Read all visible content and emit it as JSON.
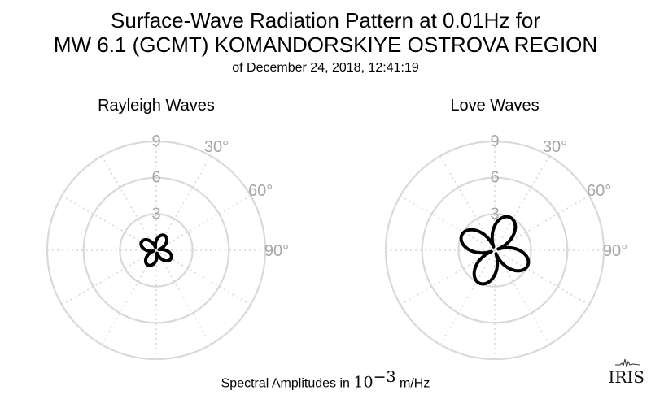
{
  "title_line1": "Surface-Wave Radiation Pattern at 0.01Hz for",
  "title_line2": "MW 6.1 (GCMT) KOMANDORSKIYE OSTROVA REGION",
  "title_line3": "of December 24, 2018, 12:41:19",
  "footer": {
    "prefix": "Spectral Amplitudes in ",
    "base": "10",
    "exponent": "−3",
    "unit": " m/Hz"
  },
  "logo": "IRIS",
  "chart_data": [
    {
      "type": "polar",
      "title": "Rayleigh Waves",
      "r_ticks": [
        "3",
        "6",
        "9"
      ],
      "rmax": 9,
      "angle_ticks": [
        "30°",
        "60°",
        "90°"
      ],
      "grid": true,
      "pattern": {
        "shape": "four-lobe",
        "peak_amplitude": 1.4,
        "lobe_azimuths_deg": [
          30,
          120,
          210,
          300
        ],
        "min_ratio": 0.15
      },
      "colors": {
        "grid": "#d9d9d9",
        "tick_label": "#a6a6a6",
        "pattern": "#000000"
      }
    },
    {
      "type": "polar",
      "title": "Love Waves",
      "r_ticks": [
        "3",
        "6",
        "9"
      ],
      "rmax": 9,
      "angle_ticks": [
        "30°",
        "60°",
        "90°"
      ],
      "grid": true,
      "pattern": {
        "shape": "four-lobe",
        "peak_amplitude": 3.0,
        "lobe_azimuths_deg": [
          25,
          115,
          205,
          295
        ],
        "min_ratio": 0.1
      },
      "colors": {
        "grid": "#d9d9d9",
        "tick_label": "#a6a6a6",
        "pattern": "#000000"
      }
    }
  ]
}
